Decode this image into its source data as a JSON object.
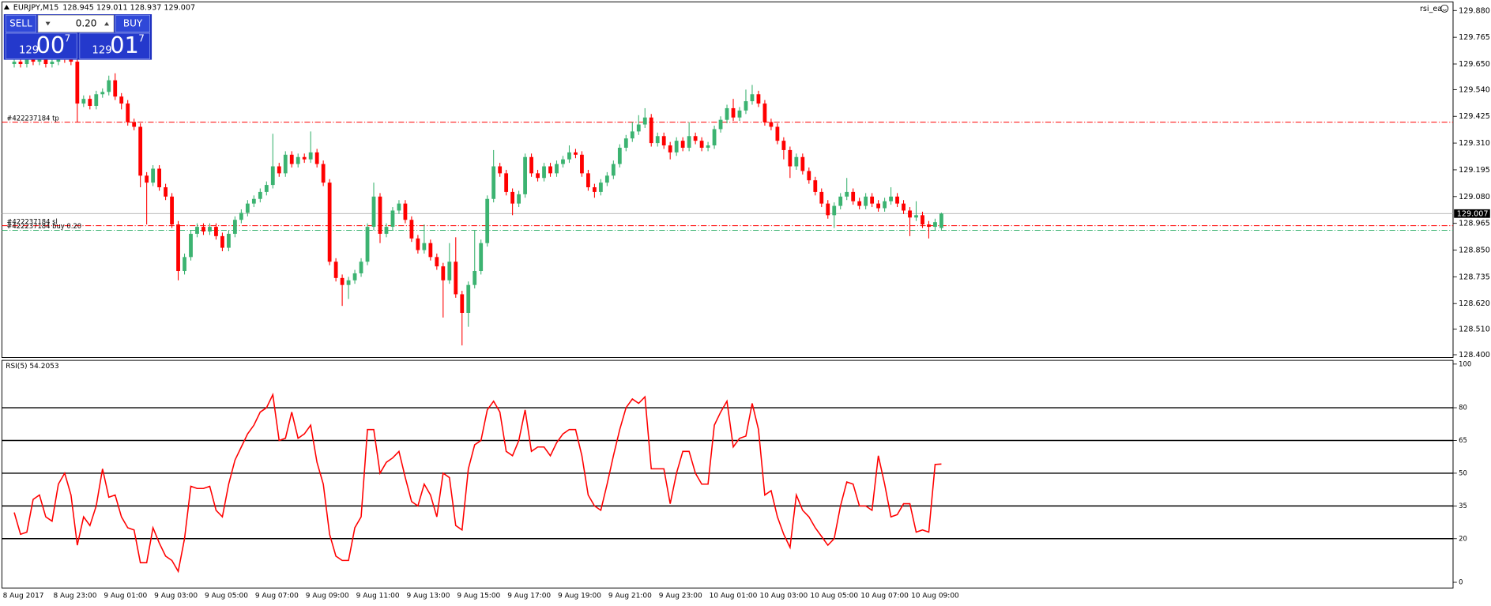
{
  "header": {
    "symbol": "EURJPY,M15",
    "ohlc_text": "128.945 129.011 128.937 129.007",
    "expert": "rsi_ea"
  },
  "trade_panel": {
    "sell": "SELL",
    "buy": "BUY",
    "lots": "0.20",
    "bid": {
      "big": "129",
      "main": "00",
      "small": "7"
    },
    "ask": {
      "big": "129",
      "main": "01",
      "small": "7"
    }
  },
  "time_axis": [
    "8 Aug 2017",
    "8 Aug 23:00",
    "9 Aug 01:00",
    "9 Aug 03:00",
    "9 Aug 05:00",
    "9 Aug 07:00",
    "9 Aug 09:00",
    "9 Aug 11:00",
    "9 Aug 13:00",
    "9 Aug 15:00",
    "9 Aug 17:00",
    "9 Aug 19:00",
    "9 Aug 21:00",
    "9 Aug 23:00",
    "10 Aug 01:00",
    "10 Aug 03:00",
    "10 Aug 05:00",
    "10 Aug 07:00",
    "10 Aug 09:00"
  ],
  "chart_data": [
    {
      "type": "candlestick",
      "up_color": "#3cb371",
      "down_color": "#ff0000",
      "ylim": [
        128.388,
        129.917
      ],
      "yticks": [
        {
          "value": 129.88,
          "label": "129.880"
        },
        129.765,
        {
          "value": 129.65,
          "label": "129.650"
        },
        {
          "value": 129.54,
          "label": "129.540"
        },
        129.425,
        {
          "value": 129.31,
          "label": "129.310"
        },
        129.195,
        {
          "value": 129.08,
          "label": "129.080"
        },
        128.965,
        {
          "value": 128.85,
          "label": "128.850"
        },
        128.735,
        {
          "value": 128.62,
          "label": "128.620"
        },
        {
          "value": 128.51,
          "label": "128.510"
        },
        {
          "value": 128.4,
          "label": "128.400"
        }
      ],
      "last_price": 129.007,
      "order_lines": [
        {
          "label": "#422237184 tp",
          "value": 129.4,
          "color": "#ff0000"
        },
        {
          "label": "#422237184 sl",
          "value": 128.955,
          "color": "#ff0000"
        },
        {
          "label": "#422237184 buy 0.20",
          "value": 128.935,
          "color": "#3cb371"
        }
      ],
      "ohlc": [
        [
          129.65,
          129.675,
          129.635,
          129.66
        ],
        [
          129.66,
          129.675,
          129.635,
          129.65
        ],
        [
          129.65,
          129.685,
          129.635,
          129.67
        ],
        [
          129.67,
          129.685,
          129.645,
          129.66
        ],
        [
          129.66,
          129.695,
          129.645,
          129.68
        ],
        [
          129.68,
          129.695,
          129.635,
          129.65
        ],
        [
          129.65,
          129.675,
          129.635,
          129.66
        ],
        [
          129.66,
          129.705,
          129.645,
          129.69
        ],
        [
          129.69,
          129.705,
          129.655,
          129.67
        ],
        [
          129.67,
          129.685,
          129.645,
          129.66
        ],
        [
          129.66,
          129.675,
          129.4,
          129.48
        ],
        [
          129.48,
          129.515,
          129.465,
          129.5
        ],
        [
          129.5,
          129.515,
          129.455,
          129.47
        ],
        [
          129.47,
          129.535,
          129.455,
          129.52
        ],
        [
          129.52,
          129.545,
          129.505,
          129.53
        ],
        [
          129.53,
          129.6,
          129.515,
          129.58
        ],
        [
          129.58,
          129.61,
          129.495,
          129.51
        ],
        [
          129.51,
          129.525,
          129.455,
          129.48
        ],
        [
          129.48,
          129.495,
          129.385,
          129.4
        ],
        [
          129.4,
          129.415,
          129.365,
          129.38
        ],
        [
          129.38,
          129.395,
          129.12,
          129.17
        ],
        [
          129.17,
          129.185,
          128.96,
          129.14
        ],
        [
          129.14,
          129.215,
          129.125,
          129.2
        ],
        [
          129.2,
          129.215,
          129.105,
          129.12
        ],
        [
          129.12,
          129.135,
          129.065,
          129.08
        ],
        [
          129.08,
          129.095,
          128.945,
          128.96
        ],
        [
          128.96,
          128.975,
          128.72,
          128.76
        ],
        [
          128.76,
          128.835,
          128.745,
          128.82
        ],
        [
          128.82,
          128.935,
          128.805,
          128.92
        ],
        [
          128.92,
          128.965,
          128.905,
          128.95
        ],
        [
          128.95,
          128.965,
          128.915,
          128.93
        ],
        [
          128.93,
          128.965,
          128.915,
          128.95
        ],
        [
          128.95,
          128.965,
          128.895,
          128.91
        ],
        [
          128.91,
          128.925,
          128.845,
          128.86
        ],
        [
          128.86,
          128.935,
          128.845,
          128.92
        ],
        [
          128.92,
          128.995,
          128.905,
          128.98
        ],
        [
          128.98,
          129.025,
          128.965,
          129.01
        ],
        [
          129.01,
          129.065,
          128.995,
          129.05
        ],
        [
          129.05,
          129.085,
          129.035,
          129.07
        ],
        [
          129.07,
          129.115,
          129.055,
          129.1
        ],
        [
          129.1,
          129.145,
          129.085,
          129.13
        ],
        [
          129.13,
          129.35,
          129.115,
          129.21
        ],
        [
          129.21,
          129.225,
          129.165,
          129.18
        ],
        [
          129.18,
          129.275,
          129.165,
          129.26
        ],
        [
          129.26,
          129.275,
          129.205,
          129.22
        ],
        [
          129.22,
          129.265,
          129.205,
          129.25
        ],
        [
          129.25,
          129.265,
          129.225,
          129.24
        ],
        [
          129.24,
          129.36,
          129.225,
          129.27
        ],
        [
          129.27,
          129.285,
          129.205,
          129.22
        ],
        [
          129.22,
          129.235,
          129.125,
          129.14
        ],
        [
          129.14,
          129.155,
          128.785,
          128.8
        ],
        [
          128.8,
          128.815,
          128.715,
          128.73
        ],
        [
          128.73,
          128.745,
          128.61,
          128.7
        ],
        [
          128.7,
          128.735,
          128.64,
          128.72
        ],
        [
          128.72,
          128.765,
          128.705,
          128.75
        ],
        [
          128.75,
          128.815,
          128.735,
          128.8
        ],
        [
          128.8,
          128.965,
          128.785,
          128.95
        ],
        [
          128.95,
          129.14,
          128.935,
          129.08
        ],
        [
          129.08,
          129.095,
          128.88,
          128.92
        ],
        [
          128.92,
          128.965,
          128.905,
          128.95
        ],
        [
          128.95,
          129.035,
          128.935,
          129.02
        ],
        [
          129.02,
          129.065,
          129.005,
          129.05
        ],
        [
          129.05,
          129.065,
          128.965,
          128.98
        ],
        [
          128.98,
          128.995,
          128.885,
          128.9
        ],
        [
          128.9,
          128.915,
          128.835,
          128.85
        ],
        [
          128.85,
          128.96,
          128.835,
          128.88
        ],
        [
          128.88,
          128.895,
          128.805,
          128.82
        ],
        [
          128.82,
          128.835,
          128.765,
          128.78
        ],
        [
          128.78,
          128.795,
          128.56,
          128.72
        ],
        [
          128.72,
          128.88,
          128.705,
          128.8
        ],
        [
          128.8,
          128.905,
          128.645,
          128.66
        ],
        [
          128.66,
          128.675,
          128.44,
          128.58
        ],
        [
          128.58,
          128.715,
          128.52,
          128.7
        ],
        [
          128.7,
          128.935,
          128.685,
          128.76
        ],
        [
          128.76,
          128.895,
          128.745,
          128.88
        ],
        [
          128.88,
          129.085,
          128.865,
          129.07
        ],
        [
          129.07,
          129.28,
          129.055,
          129.21
        ],
        [
          129.21,
          129.225,
          129.165,
          129.18
        ],
        [
          129.18,
          129.195,
          129.085,
          129.1
        ],
        [
          129.1,
          129.115,
          129.0,
          129.05
        ],
        [
          129.05,
          129.105,
          129.035,
          129.09
        ],
        [
          129.09,
          129.265,
          129.075,
          129.25
        ],
        [
          129.25,
          129.265,
          129.165,
          129.18
        ],
        [
          129.18,
          129.195,
          129.145,
          129.16
        ],
        [
          129.16,
          129.225,
          129.145,
          129.21
        ],
        [
          129.21,
          129.225,
          129.165,
          129.18
        ],
        [
          129.18,
          129.235,
          129.165,
          129.22
        ],
        [
          129.22,
          129.255,
          129.205,
          129.24
        ],
        [
          129.24,
          129.3,
          129.225,
          129.27
        ],
        [
          129.27,
          129.285,
          129.245,
          129.26
        ],
        [
          129.26,
          129.275,
          129.165,
          129.18
        ],
        [
          129.18,
          129.195,
          129.105,
          129.12
        ],
        [
          129.12,
          129.135,
          129.075,
          129.1
        ],
        [
          129.1,
          129.155,
          129.085,
          129.14
        ],
        [
          129.14,
          129.185,
          129.125,
          129.17
        ],
        [
          129.17,
          129.235,
          129.155,
          129.22
        ],
        [
          129.22,
          129.305,
          129.205,
          129.29
        ],
        [
          129.29,
          129.345,
          129.275,
          129.33
        ],
        [
          129.33,
          129.4,
          129.315,
          129.36
        ],
        [
          129.36,
          129.43,
          129.345,
          129.39
        ],
        [
          129.39,
          129.46,
          129.375,
          129.42
        ],
        [
          129.42,
          129.435,
          129.295,
          129.31
        ],
        [
          129.31,
          129.355,
          129.295,
          129.34
        ],
        [
          129.34,
          129.355,
          129.285,
          129.3
        ],
        [
          129.3,
          129.315,
          129.24,
          129.27
        ],
        [
          129.27,
          129.335,
          129.255,
          129.32
        ],
        [
          129.32,
          129.335,
          129.275,
          129.29
        ],
        [
          129.29,
          129.4,
          129.275,
          129.34
        ],
        [
          129.34,
          129.355,
          129.305,
          129.32
        ],
        [
          129.32,
          129.335,
          129.275,
          129.29
        ],
        [
          129.29,
          129.315,
          129.275,
          129.3
        ],
        [
          129.3,
          129.385,
          129.285,
          129.37
        ],
        [
          129.37,
          129.425,
          129.355,
          129.41
        ],
        [
          129.41,
          129.475,
          129.395,
          129.46
        ],
        [
          129.46,
          129.5,
          129.405,
          129.42
        ],
        [
          129.42,
          129.465,
          129.405,
          129.45
        ],
        [
          129.45,
          129.54,
          129.435,
          129.49
        ],
        [
          129.49,
          129.56,
          129.475,
          129.52
        ],
        [
          129.52,
          129.535,
          129.465,
          129.48
        ],
        [
          129.48,
          129.495,
          129.385,
          129.4
        ],
        [
          129.4,
          129.415,
          129.365,
          129.38
        ],
        [
          129.38,
          129.395,
          129.305,
          129.32
        ],
        [
          129.32,
          129.335,
          129.24,
          129.28
        ],
        [
          129.28,
          129.295,
          129.16,
          129.21
        ],
        [
          129.21,
          129.265,
          129.195,
          129.25
        ],
        [
          129.25,
          129.265,
          129.175,
          129.19
        ],
        [
          129.19,
          129.205,
          129.135,
          129.15
        ],
        [
          129.15,
          129.165,
          129.085,
          129.1
        ],
        [
          129.1,
          129.115,
          129.035,
          129.05
        ],
        [
          129.05,
          129.065,
          128.985,
          129.0
        ],
        [
          129.0,
          129.055,
          128.945,
          129.04
        ],
        [
          129.04,
          129.095,
          129.025,
          129.08
        ],
        [
          129.08,
          129.16,
          129.065,
          129.1
        ],
        [
          129.1,
          129.115,
          129.045,
          129.06
        ],
        [
          129.06,
          129.075,
          129.025,
          129.04
        ],
        [
          129.04,
          129.095,
          129.025,
          129.08
        ],
        [
          129.08,
          129.095,
          129.035,
          129.05
        ],
        [
          129.05,
          129.065,
          129.015,
          129.03
        ],
        [
          129.03,
          129.075,
          129.015,
          129.06
        ],
        [
          129.06,
          129.12,
          129.045,
          129.08
        ],
        [
          129.08,
          129.095,
          129.035,
          129.05
        ],
        [
          129.05,
          129.065,
          129.005,
          129.02
        ],
        [
          129.02,
          129.035,
          128.91,
          128.99
        ],
        [
          128.99,
          129.06,
          128.975,
          129.0
        ],
        [
          129.0,
          129.015,
          128.945,
          128.96
        ],
        [
          128.96,
          128.975,
          128.9,
          128.95
        ],
        [
          128.95,
          128.985,
          128.935,
          128.97
        ],
        [
          128.945,
          129.011,
          128.937,
          129.007
        ]
      ]
    },
    {
      "type": "line",
      "title": "RSI(5) 54.2053",
      "color": "#ff0000",
      "ylim": [
        -2.6,
        101.7
      ],
      "yticks": [
        100,
        80,
        65,
        50,
        35,
        20,
        0
      ],
      "levels": [
        20,
        35,
        50,
        65,
        80
      ],
      "values": [
        32,
        22,
        23,
        38,
        40,
        30,
        28,
        45,
        50,
        40,
        17,
        30,
        26,
        35,
        52,
        39,
        40,
        30,
        25,
        24,
        9,
        9,
        25,
        18,
        12,
        10,
        5,
        20,
        44,
        43,
        43,
        44,
        33,
        30,
        45,
        56,
        62,
        68,
        72,
        78,
        80,
        86,
        65,
        66,
        78,
        66,
        68,
        72,
        55,
        45,
        22,
        12,
        10,
        10,
        25,
        30,
        70,
        70,
        50,
        55,
        57,
        60,
        48,
        37,
        35,
        45,
        40,
        30,
        50,
        48,
        26,
        24,
        52,
        63,
        65,
        79,
        83,
        78,
        60,
        58,
        65,
        79,
        60,
        62,
        62,
        58,
        64,
        68,
        70,
        70,
        58,
        40,
        35,
        33,
        45,
        58,
        70,
        80,
        84,
        82,
        85,
        52,
        52,
        52,
        36,
        50,
        60,
        60,
        50,
        45,
        45,
        72,
        78,
        83,
        62,
        66,
        67,
        82,
        70,
        40,
        42,
        30,
        22,
        16,
        40,
        33,
        30,
        25,
        21,
        17,
        20,
        35,
        46,
        45,
        35,
        35,
        33,
        58,
        45,
        30,
        31,
        36,
        36,
        23,
        24,
        23,
        54,
        54.2053
      ]
    }
  ]
}
